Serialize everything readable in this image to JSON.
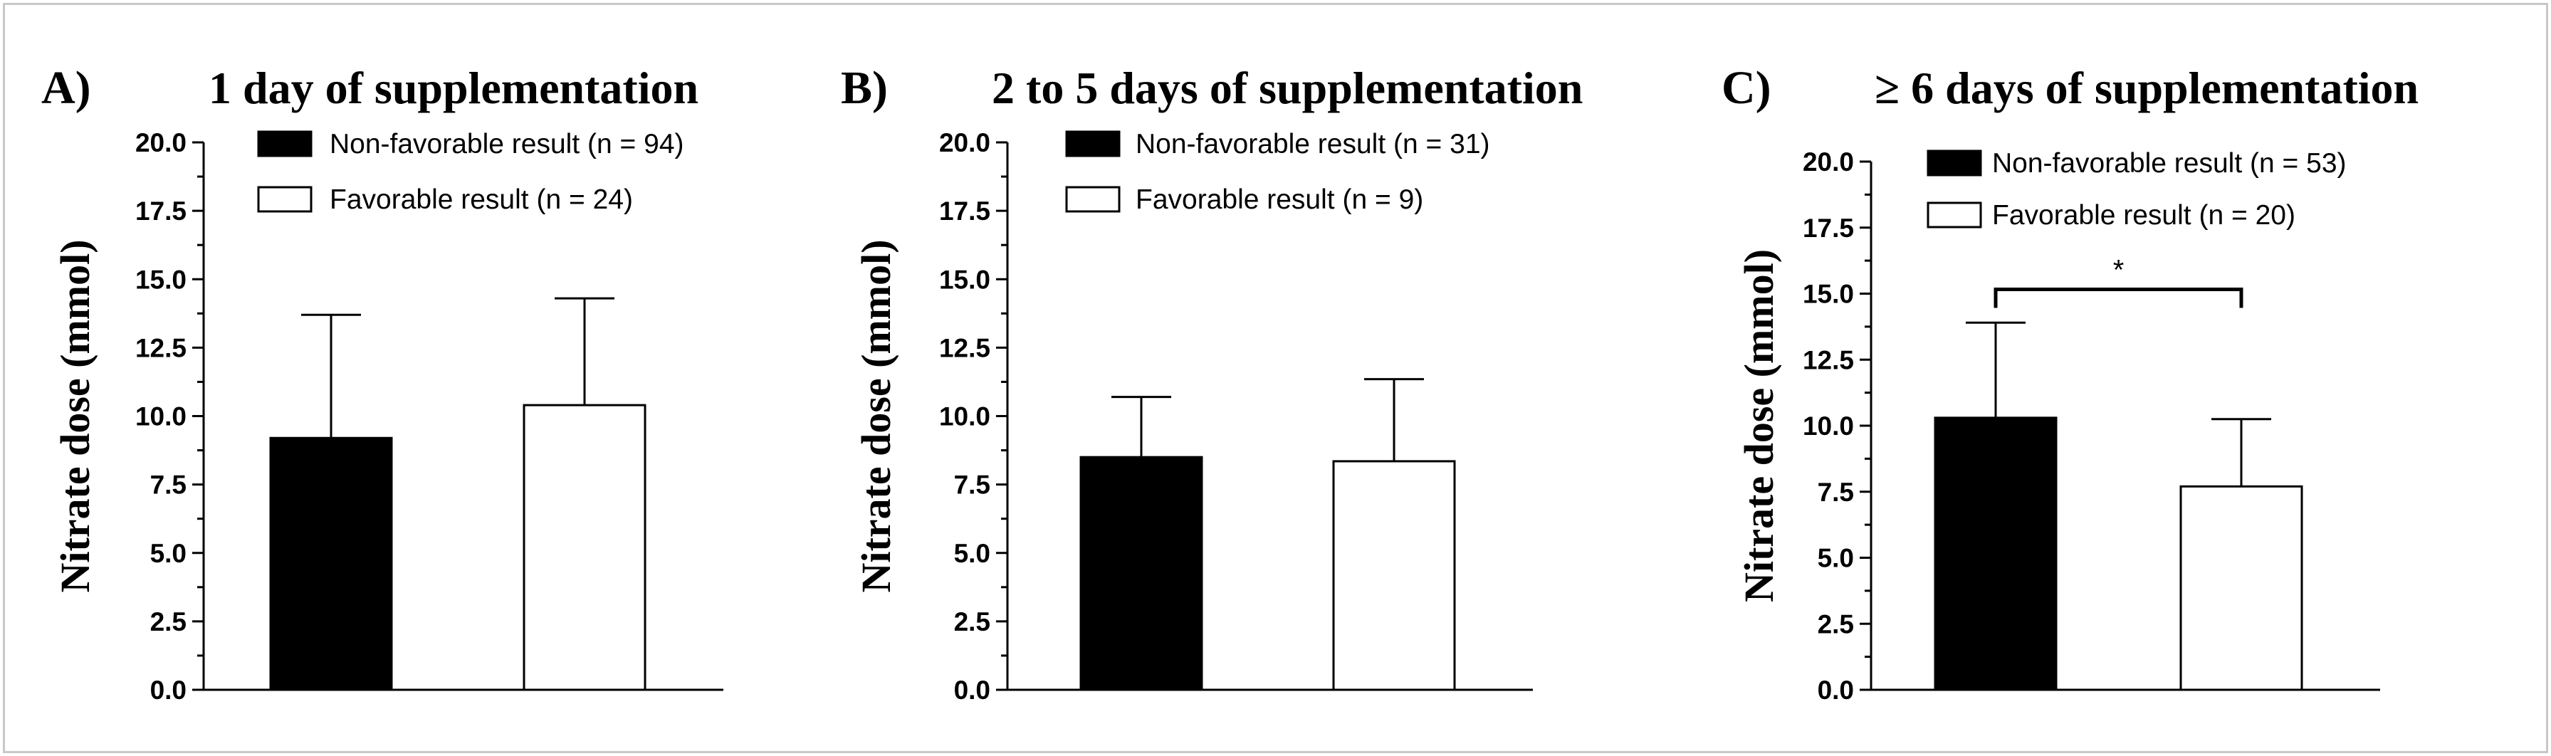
{
  "chart_data": [
    {
      "type": "bar",
      "panel": "A)",
      "title": "1 day of supplementation",
      "ylabel": "Nitrate dose (mmol)",
      "xlabel": "",
      "ylim": [
        0,
        20
      ],
      "yticks": [
        "0.0",
        "2.5",
        "5.0",
        "7.5",
        "10.0",
        "12.5",
        "15.0",
        "17.5",
        "20.0"
      ],
      "legend_position": "top",
      "series": [
        {
          "name": "Non-favorable result (n = 94)",
          "value": 9.2,
          "error": 4.5,
          "fill": "#000000"
        },
        {
          "name": "Favorable result (n = 24)",
          "value": 10.4,
          "error": 3.9,
          "fill": "#ffffff"
        }
      ]
    },
    {
      "type": "bar",
      "panel": "B)",
      "title": "2 to 5 days of supplementation",
      "ylabel": "Nitrate dose (mmol)",
      "xlabel": "",
      "ylim": [
        0,
        20
      ],
      "yticks": [
        "0.0",
        "2.5",
        "5.0",
        "7.5",
        "10.0",
        "12.5",
        "15.0",
        "17.5",
        "20.0"
      ],
      "legend_position": "top",
      "series": [
        {
          "name": "Non-favorable result (n = 31)",
          "value": 8.5,
          "error": 2.2,
          "fill": "#000000"
        },
        {
          "name": "Favorable result (n = 9)",
          "value": 8.35,
          "error": 3.0,
          "fill": "#ffffff"
        }
      ]
    },
    {
      "type": "bar",
      "panel": "C)",
      "title": "≥ 6 days of supplementation",
      "ylabel": "Nitrate dose (mmol)",
      "xlabel": "",
      "ylim": [
        0,
        20
      ],
      "yticks": [
        "0.0",
        "2.5",
        "5.0",
        "7.5",
        "10.0",
        "12.5",
        "15.0",
        "17.5",
        "20.0"
      ],
      "legend_position": "top",
      "significance": {
        "label": "*",
        "between": [
          0,
          1
        ],
        "y": 15.0
      },
      "series": [
        {
          "name": "Non-favorable result (n = 53)",
          "value": 10.3,
          "error": 3.6,
          "fill": "#000000"
        },
        {
          "name": "Favorable result (n = 20)",
          "value": 7.7,
          "error": 2.55,
          "fill": "#ffffff"
        }
      ]
    }
  ]
}
